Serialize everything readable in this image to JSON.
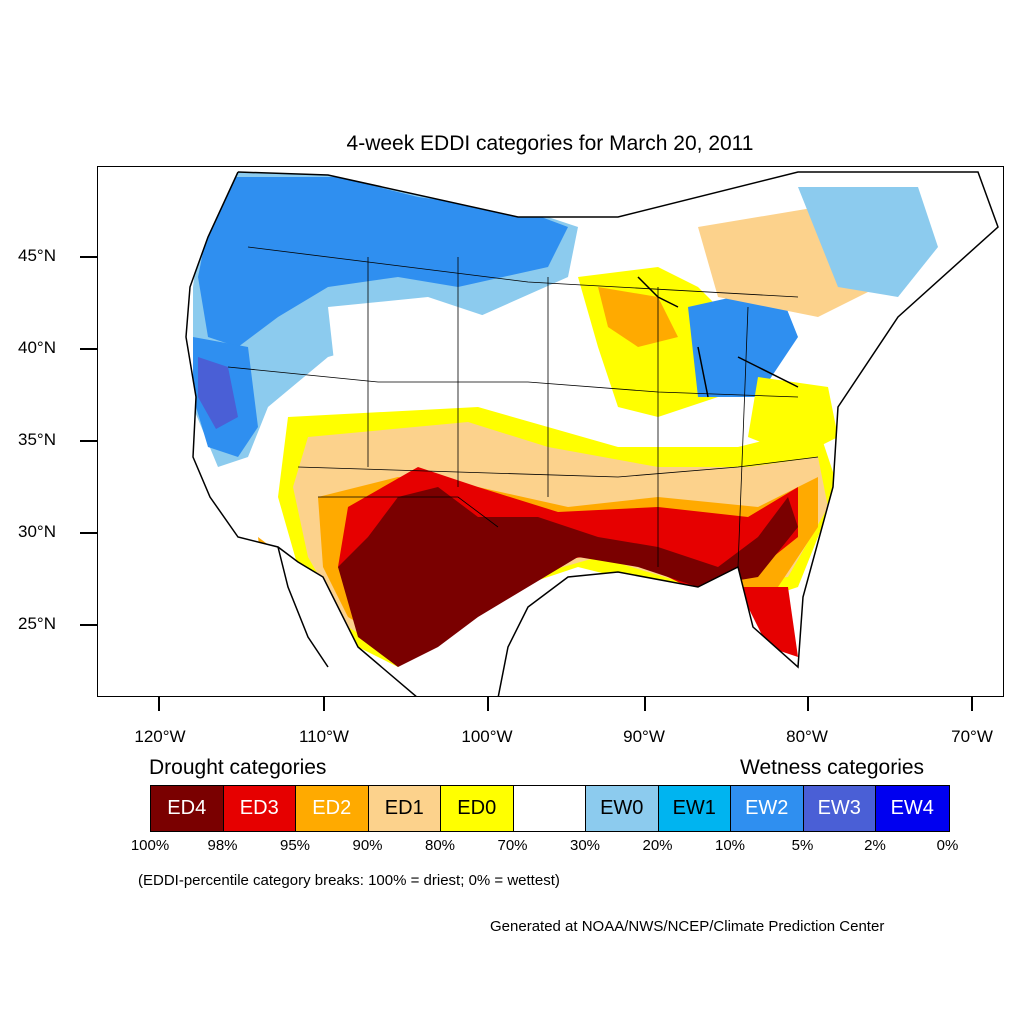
{
  "title": "4-week EDDI categories for March 20, 2011",
  "y_axis_labels": [
    "45°N",
    "40°N",
    "35°N",
    "30°N",
    "25°N"
  ],
  "x_axis_labels": [
    "120°W",
    "110°W",
    "100°W",
    "90°W",
    "80°W",
    "70°W"
  ],
  "legend": {
    "drought_title": "Drought categories",
    "wetness_title": "Wetness categories",
    "categories": [
      {
        "label": "ED4",
        "color": "#7a0000",
        "text_color": "#ffffff"
      },
      {
        "label": "ED3",
        "color": "#e60000",
        "text_color": "#ffffff"
      },
      {
        "label": "ED2",
        "color": "#ffaa00",
        "text_color": "#ffffff"
      },
      {
        "label": "ED1",
        "color": "#fcd28c",
        "text_color": "#000000"
      },
      {
        "label": "ED0",
        "color": "#ffff00",
        "text_color": "#000000"
      },
      {
        "label": "",
        "color": "#ffffff",
        "text_color": "#000000"
      },
      {
        "label": "EW0",
        "color": "#8ccbee",
        "text_color": "#000000"
      },
      {
        "label": "EW1",
        "color": "#00b4f0",
        "text_color": "#000000"
      },
      {
        "label": "EW2",
        "color": "#2f8ff0",
        "text_color": "#ffffff"
      },
      {
        "label": "EW3",
        "color": "#4a5fd6",
        "text_color": "#ffffff"
      },
      {
        "label": "EW4",
        "color": "#0000f0",
        "text_color": "#ffffff"
      }
    ],
    "percentiles": [
      "100%",
      "98%",
      "95%",
      "90%",
      "80%",
      "70%",
      "30%",
      "20%",
      "10%",
      "5%",
      "2%",
      "0%"
    ]
  },
  "note": "(EDDI-percentile category breaks: 100% = driest; 0% = wettest)",
  "credit": "Generated at NOAA/NWS/NCEP/Climate Prediction Center"
}
